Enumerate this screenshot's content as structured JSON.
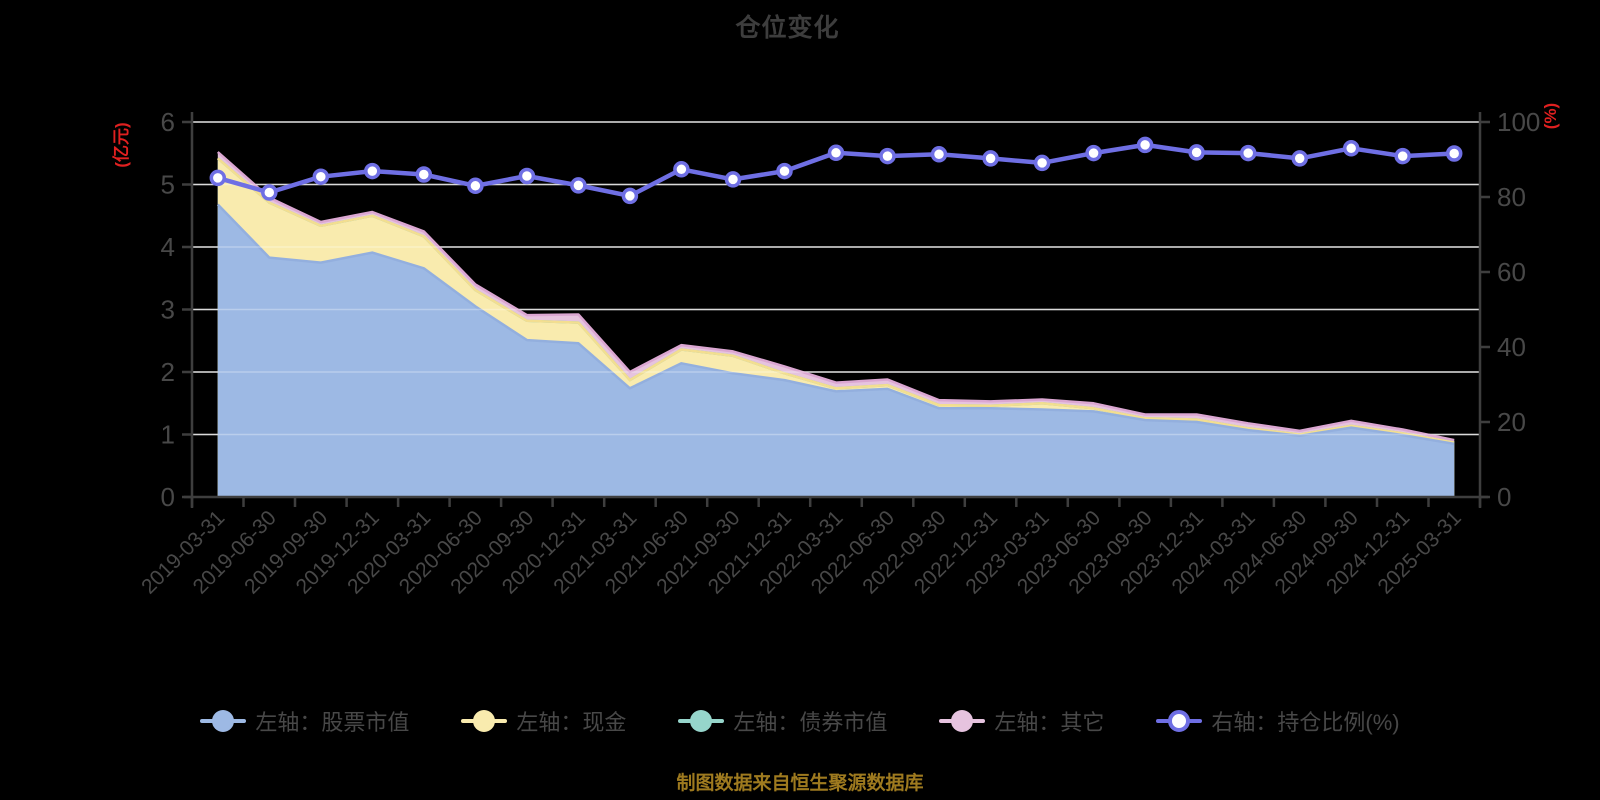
{
  "title": "仓位变化",
  "source_note": "制图数据来自恒生聚源数据库",
  "colors": {
    "background": "#000000",
    "title_text": "#3d3d3d",
    "axis_line": "#3e3e3e",
    "tick_label": "#484848",
    "legend_text": "#484848",
    "gridline": "#cacaca",
    "gridline_overlay": "rgba(255,255,255,0.30)",
    "axis_name_red": "#e02020",
    "source_text": "#9e7a1f",
    "line_series": "#6f6fe4",
    "marker_fill": "#ffffff"
  },
  "axes": {
    "left_name": "(亿元)",
    "right_name": "(%)",
    "left_ticks": [
      0,
      1,
      2,
      3,
      4,
      5,
      6
    ],
    "right_ticks": [
      0,
      20,
      40,
      60,
      80,
      100
    ],
    "left_max": 6,
    "right_max": 100
  },
  "chart_data": {
    "type": "area",
    "subtype": "stacked-area-with-line",
    "title": "仓位变化",
    "xlabel": "",
    "ylabel_left": "(亿元)",
    "ylabel_right": "(%)",
    "ylim_left": [
      0,
      6
    ],
    "ylim_right": [
      0,
      100
    ],
    "grid": true,
    "legend_position": "bottom",
    "categories": [
      "2019-03-31",
      "2019-06-30",
      "2019-09-30",
      "2019-12-31",
      "2020-03-31",
      "2020-06-30",
      "2020-09-30",
      "2020-12-31",
      "2021-03-31",
      "2021-06-30",
      "2021-09-30",
      "2021-12-31",
      "2022-03-31",
      "2022-06-30",
      "2022-09-30",
      "2022-12-31",
      "2023-03-31",
      "2023-06-30",
      "2023-09-30",
      "2023-12-31",
      "2024-03-31",
      "2024-06-30",
      "2024-09-30",
      "2024-12-31",
      "2025-03-31"
    ],
    "series": [
      {
        "key": "stock",
        "name": "左轴：股票市值",
        "axis": "left",
        "type": "area",
        "color": "#9db9e4",
        "edge_color": "#93afde",
        "values": [
          4.68,
          3.83,
          3.75,
          3.91,
          3.66,
          3.05,
          2.51,
          2.46,
          1.74,
          2.14,
          1.98,
          1.87,
          1.69,
          1.73,
          1.42,
          1.42,
          1.4,
          1.37,
          1.23,
          1.2,
          1.07,
          0.98,
          1.11,
          0.99,
          0.85
        ]
      },
      {
        "key": "cash",
        "name": "左轴：现金",
        "axis": "left",
        "type": "area",
        "color": "#f9ebae",
        "edge_color": "#f3de90",
        "values": [
          0.74,
          0.88,
          0.59,
          0.59,
          0.51,
          0.26,
          0.31,
          0.33,
          0.13,
          0.22,
          0.28,
          0.11,
          0.05,
          0.06,
          0.05,
          0.04,
          0.1,
          0.05,
          0.03,
          0.04,
          0.03,
          0.02,
          0.03,
          0.03,
          0.02
        ]
      },
      {
        "key": "bond",
        "name": "左轴：债券市值",
        "axis": "left",
        "type": "area",
        "color": "#96d5cb",
        "edge_color": "#7fc8bc",
        "values": [
          0,
          0,
          0,
          0,
          0,
          0,
          0,
          0,
          0,
          0,
          0,
          0,
          0,
          0,
          0,
          0,
          0,
          0,
          0,
          0,
          0,
          0,
          0,
          0,
          0
        ]
      },
      {
        "key": "other",
        "name": "左轴：其它",
        "axis": "left",
        "type": "area",
        "color": "#e6c3df",
        "edge_color": "#dba7d2",
        "values": [
          0.1,
          0.08,
          0.06,
          0.06,
          0.08,
          0.09,
          0.09,
          0.13,
          0.13,
          0.07,
          0.07,
          0.11,
          0.09,
          0.09,
          0.08,
          0.07,
          0.06,
          0.08,
          0.06,
          0.08,
          0.08,
          0.06,
          0.08,
          0.06,
          0.04
        ]
      },
      {
        "key": "ratio",
        "name": "右轴：持仓比例(%)",
        "axis": "right",
        "type": "line",
        "color": "#6f6fe4",
        "marker": "circle-white",
        "values": [
          85.1,
          81.2,
          85.4,
          86.9,
          86.0,
          83.0,
          85.6,
          83.1,
          80.3,
          87.4,
          84.7,
          86.9,
          91.8,
          90.9,
          91.4,
          90.3,
          89.1,
          91.7,
          93.9,
          91.9,
          91.7,
          90.3,
          93.0,
          90.9,
          91.6
        ]
      }
    ]
  }
}
